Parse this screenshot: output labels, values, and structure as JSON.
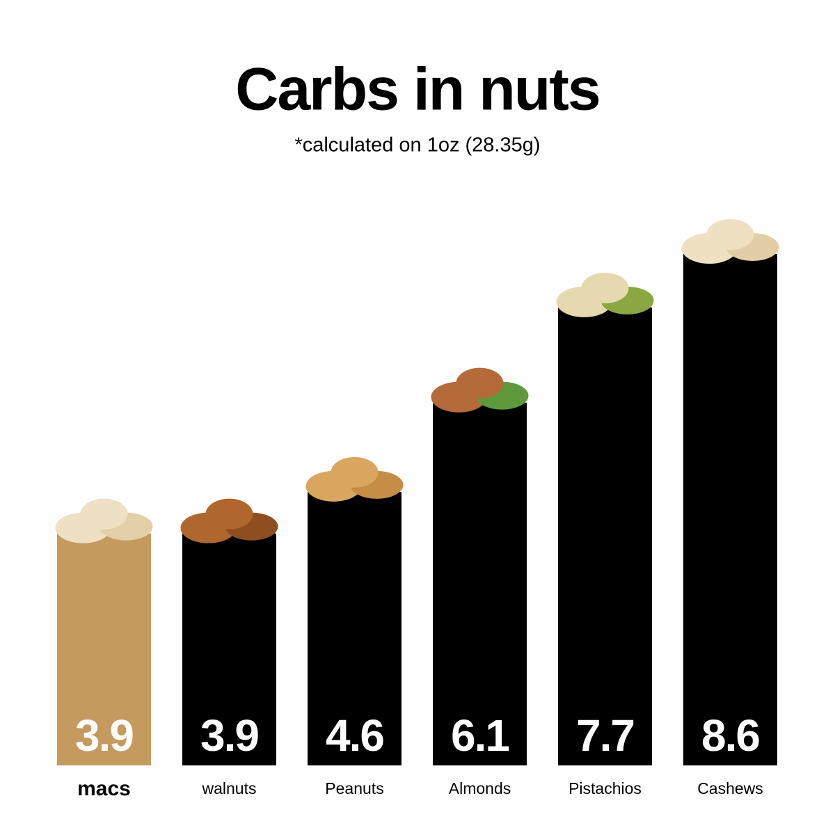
{
  "chart_data": {
    "type": "bar",
    "title": "Carbs in nuts",
    "subtitle": "*calculated on 1oz (28.35g)",
    "categories": [
      "macs",
      "walnuts",
      "Peanuts",
      "Almonds",
      "Pistachios",
      "Cashews"
    ],
    "values": [
      3.9,
      3.9,
      4.6,
      6.1,
      7.7,
      8.6
    ],
    "colors": [
      "#c49a5e",
      "#000000",
      "#000000",
      "#000000",
      "#000000",
      "#000000"
    ]
  }
}
